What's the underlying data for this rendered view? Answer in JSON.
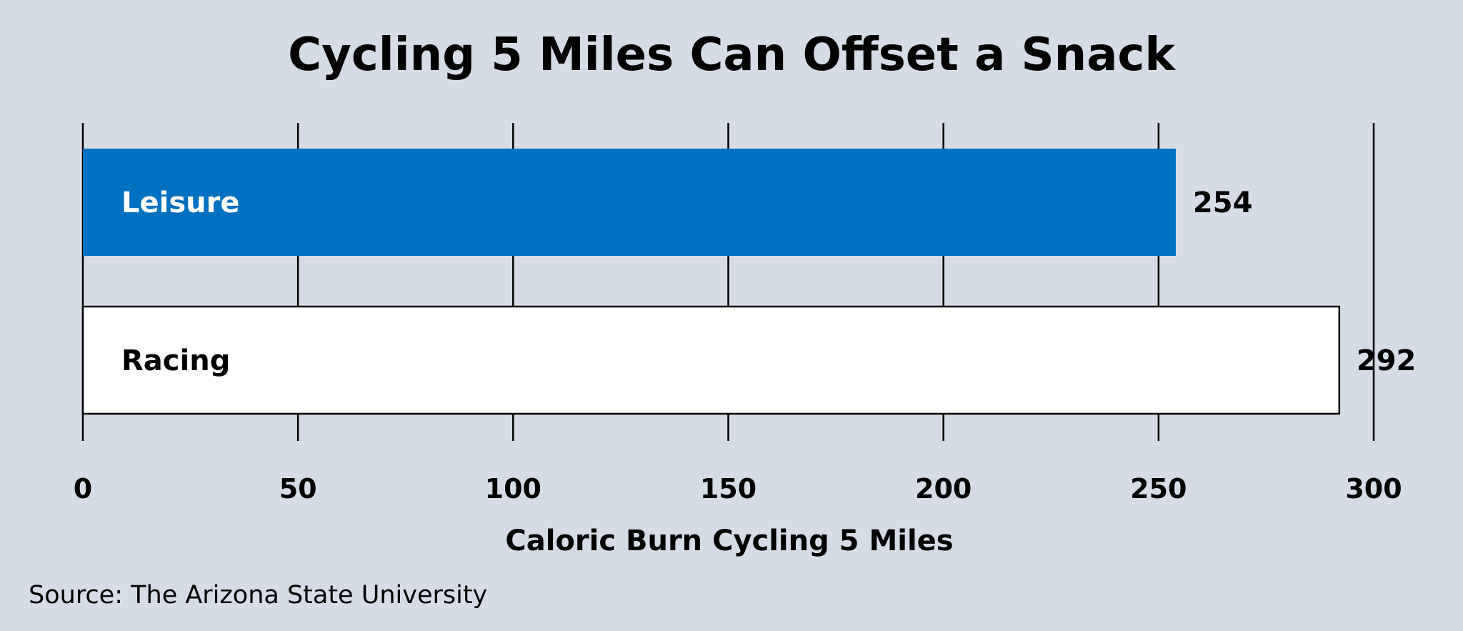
{
  "chart_data": {
    "type": "bar",
    "orientation": "horizontal",
    "title": "Cycling 5 Miles Can Offset a Snack",
    "xlabel": "Caloric Burn Cycling 5 Miles",
    "ylabel": "",
    "categories": [
      "Leisure",
      "Racing"
    ],
    "values": [
      254,
      292
    ],
    "value_labels": [
      "254",
      "292"
    ],
    "xlim": [
      0,
      300
    ],
    "ticks": [
      "0",
      "50",
      "100",
      "150",
      "200",
      "250",
      "300"
    ],
    "grid": "vertical",
    "legend": "none",
    "bar_colors": [
      "#0070c0",
      "#ffffff"
    ],
    "category_label_colors": [
      "#ffffff",
      "#000000"
    ],
    "source": "Source: The Arizona State University"
  },
  "colors": {
    "background": "#d6dce6",
    "gridline": "#000000",
    "bar_outline": "#000000"
  }
}
